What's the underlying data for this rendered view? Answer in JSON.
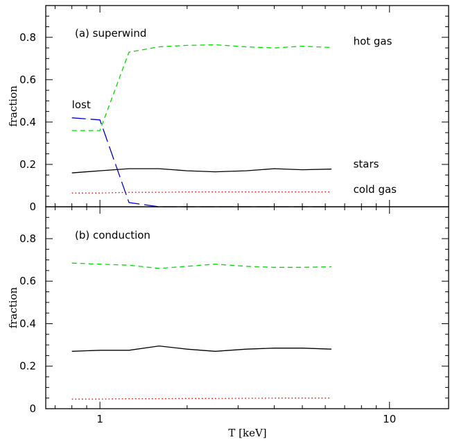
{
  "chart_data": [
    {
      "type": "line",
      "title": "",
      "panel_label": "(a) superwind",
      "xlabel": "",
      "ylabel": "fraction",
      "xscale": "log",
      "xlim": [
        0.65,
        16
      ],
      "ylim": [
        0,
        0.95
      ],
      "x_ticks": [
        1,
        10
      ],
      "x_tick_labels": [
        "",
        ""
      ],
      "y_ticks": [
        0,
        0.2,
        0.4,
        0.6,
        0.8
      ],
      "y_tick_labels": [
        "0",
        "0.2",
        "0.4",
        "0.6",
        "0.8"
      ],
      "grid": false,
      "series": [
        {
          "name": "hot gas",
          "color": "#00dd00",
          "style": "short-dash",
          "x": [
            0.8,
            1.0,
            1.26,
            1.6,
            2.0,
            2.5,
            3.2,
            4.0,
            5.0,
            6.3
          ],
          "y": [
            0.36,
            0.36,
            0.73,
            0.755,
            0.762,
            0.765,
            0.755,
            0.75,
            0.758,
            0.752
          ]
        },
        {
          "name": "lost",
          "color": "#0000cc",
          "style": "long-dash",
          "x": [
            0.8,
            1.0,
            1.26,
            1.6,
            2.0,
            2.5,
            3.2,
            4.0,
            5.0,
            6.3
          ],
          "y": [
            0.42,
            0.41,
            0.02,
            0.0,
            0.0,
            0.0,
            0.0,
            0.0,
            0.0,
            0.0
          ]
        },
        {
          "name": "stars",
          "color": "#000000",
          "style": "solid",
          "x": [
            0.8,
            1.0,
            1.26,
            1.6,
            2.0,
            2.5,
            3.2,
            4.0,
            5.0,
            6.3
          ],
          "y": [
            0.16,
            0.17,
            0.18,
            0.18,
            0.17,
            0.165,
            0.17,
            0.18,
            0.175,
            0.178
          ]
        },
        {
          "name": "cold gas",
          "color": "#ee0000",
          "style": "dotted",
          "x": [
            0.8,
            1.0,
            1.26,
            1.6,
            2.0,
            2.5,
            3.2,
            4.0,
            5.0,
            6.3
          ],
          "y": [
            0.065,
            0.065,
            0.068,
            0.068,
            0.07,
            0.07,
            0.07,
            0.07,
            0.07,
            0.07
          ]
        }
      ],
      "annotations": [
        {
          "text": "hot gas",
          "x": 7.5,
          "y": 0.765
        },
        {
          "text": "lost",
          "x": 0.8,
          "y": 0.465
        },
        {
          "text": "stars",
          "x": 7.5,
          "y": 0.185
        },
        {
          "text": "cold gas",
          "x": 7.5,
          "y": 0.065
        }
      ]
    },
    {
      "type": "line",
      "title": "",
      "panel_label": "(b) conduction",
      "xlabel": "T [keV]",
      "ylabel": "fraction",
      "xscale": "log",
      "xlim": [
        0.65,
        16
      ],
      "ylim": [
        0,
        0.95
      ],
      "x_ticks": [
        1,
        10
      ],
      "x_tick_labels": [
        "1",
        "10"
      ],
      "y_ticks": [
        0,
        0.2,
        0.4,
        0.6,
        0.8
      ],
      "y_tick_labels": [
        "0",
        "0.2",
        "0.4",
        "0.6",
        "0.8"
      ],
      "grid": false,
      "series": [
        {
          "name": "hot gas",
          "color": "#00dd00",
          "style": "short-dash",
          "x": [
            0.8,
            1.0,
            1.26,
            1.6,
            2.0,
            2.5,
            3.2,
            4.0,
            5.0,
            6.3
          ],
          "y": [
            0.685,
            0.68,
            0.675,
            0.66,
            0.67,
            0.68,
            0.67,
            0.665,
            0.665,
            0.668
          ]
        },
        {
          "name": "stars",
          "color": "#000000",
          "style": "solid",
          "x": [
            0.8,
            1.0,
            1.26,
            1.6,
            2.0,
            2.5,
            3.2,
            4.0,
            5.0,
            6.3
          ],
          "y": [
            0.27,
            0.275,
            0.275,
            0.295,
            0.28,
            0.27,
            0.28,
            0.285,
            0.285,
            0.28
          ]
        },
        {
          "name": "cold gas",
          "color": "#ee0000",
          "style": "dotted",
          "x": [
            0.8,
            1.0,
            1.26,
            1.6,
            2.0,
            2.5,
            3.2,
            4.0,
            5.0,
            6.3
          ],
          "y": [
            0.045,
            0.045,
            0.047,
            0.047,
            0.048,
            0.048,
            0.049,
            0.05,
            0.05,
            0.05
          ]
        }
      ],
      "annotations": []
    }
  ]
}
